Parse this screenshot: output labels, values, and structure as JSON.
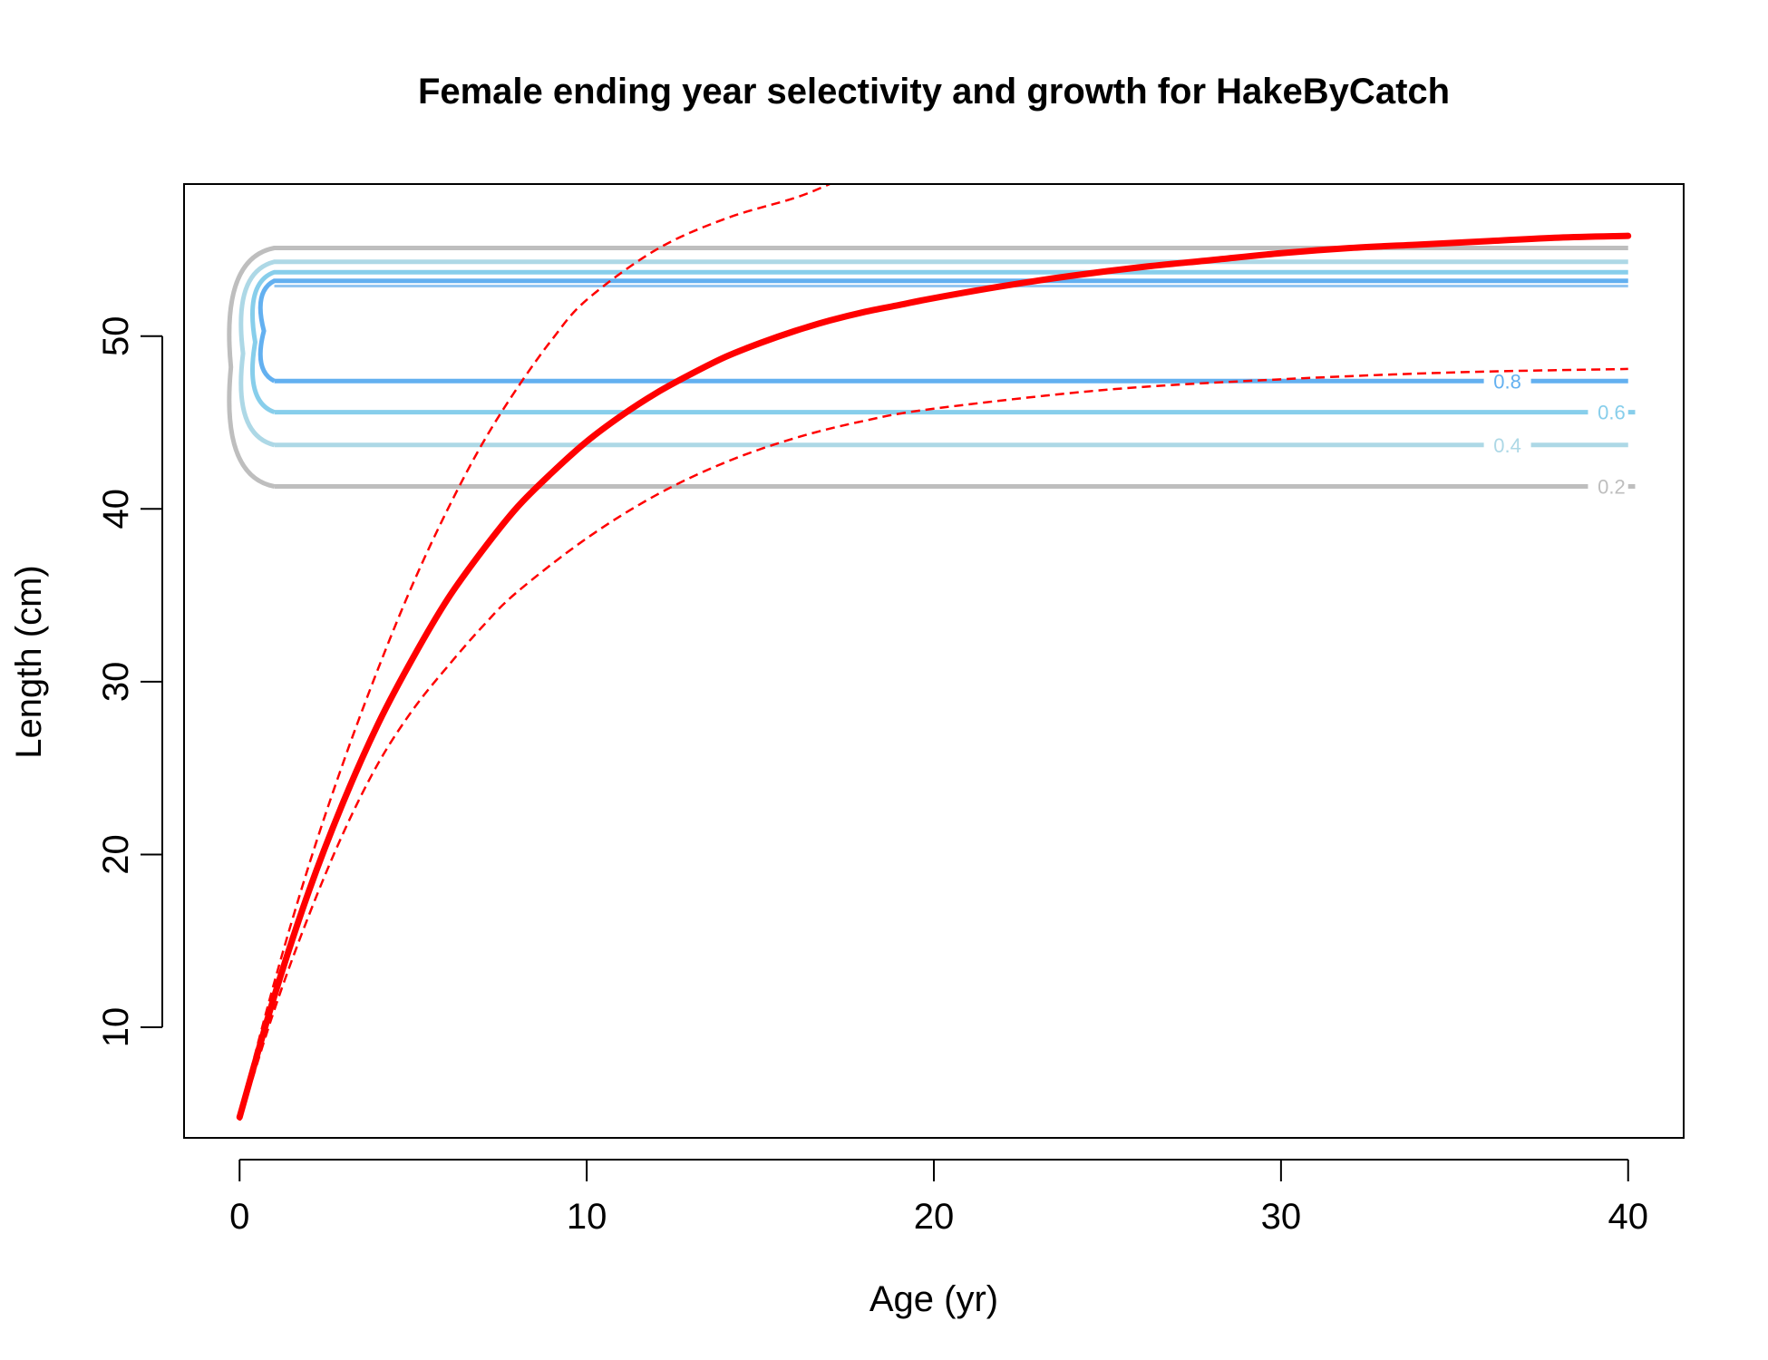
{
  "colors": {
    "growth": "#ff0000",
    "contour_0_2": "#bebebe",
    "contour_0_4": "#add8e6",
    "contour_0_6": "#87ceeb",
    "contour_0_8": "#63b0f0",
    "contour_1_0": "#4a9ee8",
    "axis": "#000000"
  },
  "chart_data": {
    "type": "line",
    "title": "Female ending year selectivity and growth for HakeByCatch",
    "xlabel": "Age (yr)",
    "ylabel": "Length (cm)",
    "xlim": [
      -1.6,
      41.6
    ],
    "ylim": [
      3.6,
      58.8
    ],
    "x_ticks": [
      0,
      10,
      20,
      30,
      40
    ],
    "y_ticks": [
      10,
      20,
      30,
      40,
      50
    ],
    "x_tick_labels": [
      "0",
      "10",
      "20",
      "30",
      "40"
    ],
    "y_tick_labels": [
      "10",
      "20",
      "30",
      "40",
      "50"
    ],
    "grid": false,
    "growth_curve": {
      "line_style": "solid-thick",
      "x": [
        0,
        1,
        2,
        3,
        4,
        5,
        6,
        7,
        8,
        9,
        10,
        11,
        12,
        13,
        14,
        15,
        16,
        17,
        18,
        19,
        20,
        22,
        24,
        26,
        28,
        30,
        32,
        34,
        36,
        38,
        40
      ],
      "y": [
        4.8,
        11.8,
        17.9,
        23.1,
        27.6,
        31.4,
        34.8,
        37.6,
        40.1,
        42.1,
        43.9,
        45.4,
        46.7,
        47.8,
        48.8,
        49.6,
        50.3,
        50.9,
        51.4,
        51.8,
        52.2,
        52.9,
        53.5,
        54.0,
        54.4,
        54.8,
        55.1,
        55.3,
        55.5,
        55.7,
        55.8
      ]
    },
    "growth_upper_ci": {
      "line_style": "dashed",
      "x": [
        0,
        1,
        2,
        3,
        4,
        5,
        6,
        7,
        8,
        9,
        10,
        12,
        14,
        16,
        17
      ],
      "y": [
        5.0,
        12.6,
        19.4,
        25.4,
        30.8,
        35.7,
        40.0,
        43.8,
        47.0,
        49.8,
        52.1,
        55.0,
        56.8,
        58.0,
        58.8
      ]
    },
    "growth_lower_ci": {
      "line_style": "dashed",
      "x": [
        0,
        1,
        2,
        3,
        4,
        5,
        6,
        7,
        8,
        10,
        12,
        14,
        16,
        18,
        20,
        25,
        30,
        35,
        40
      ],
      "y": [
        4.6,
        11.0,
        16.5,
        21.3,
        25.3,
        28.4,
        30.9,
        33.2,
        35.2,
        38.3,
        40.8,
        42.7,
        44.1,
        45.1,
        45.8,
        46.9,
        47.5,
        47.9,
        48.1
      ]
    },
    "selectivity_contours": [
      {
        "level": "0.2",
        "lower": 41.3,
        "upper": 55.1,
        "x_start": 1.0,
        "x_bulge": -0.25
      },
      {
        "level": "0.4",
        "lower": 43.7,
        "upper": 54.3,
        "x_start": 1.0,
        "x_bulge": 0.1
      },
      {
        "level": "0.6",
        "lower": 45.6,
        "upper": 53.7,
        "x_start": 1.0,
        "x_bulge": 0.45
      },
      {
        "level": "0.8",
        "lower": 47.4,
        "upper": 53.2,
        "x_start": 1.0,
        "x_bulge": 0.7
      }
    ],
    "contour_labels": [
      {
        "text": "0.2",
        "x": 39.0,
        "y": 41.3
      },
      {
        "text": "0.4",
        "x": 36.0,
        "y": 43.7
      },
      {
        "text": "0.6",
        "x": 39.0,
        "y": 45.6
      },
      {
        "text": "0.8",
        "x": 36.0,
        "y": 47.4
      }
    ]
  }
}
